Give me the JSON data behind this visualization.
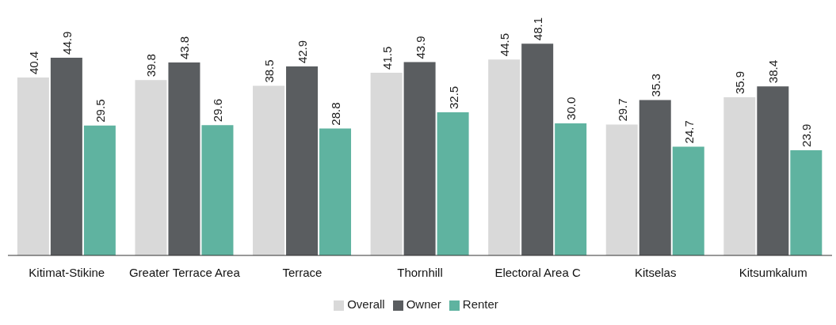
{
  "chart_data": {
    "type": "bar",
    "categories": [
      "Kitimat-Stikine",
      "Greater Terrace Area",
      "Terrace",
      "Thornhill",
      "Electoral Area C",
      "Kitselas",
      "Kitsumkalum"
    ],
    "series": [
      {
        "name": "Overall",
        "color": "#d9d9d9",
        "values": [
          40.4,
          39.8,
          38.5,
          41.5,
          44.5,
          29.7,
          35.9
        ],
        "value_labels": [
          "40.4",
          "39.8",
          "38.5",
          "41.5",
          "44.5",
          "29.7",
          "35.9"
        ]
      },
      {
        "name": "Owner",
        "color": "#5a5d60",
        "values": [
          44.9,
          43.8,
          42.9,
          43.9,
          48.1,
          35.3,
          38.4
        ],
        "value_labels": [
          "44.9",
          "43.8",
          "42.9",
          "43.9",
          "48.1",
          "35.3",
          "38.4"
        ]
      },
      {
        "name": "Renter",
        "color": "#5fb3a0",
        "values": [
          29.5,
          29.6,
          28.8,
          32.5,
          30.0,
          24.7,
          23.9
        ],
        "value_labels": [
          "29.5",
          "29.6",
          "28.8",
          "32.5",
          "30.0",
          "24.7",
          "23.9"
        ]
      }
    ],
    "ylim": [
      0,
      58
    ],
    "tick_labels": "x",
    "legend": "bottom",
    "grid": false
  }
}
